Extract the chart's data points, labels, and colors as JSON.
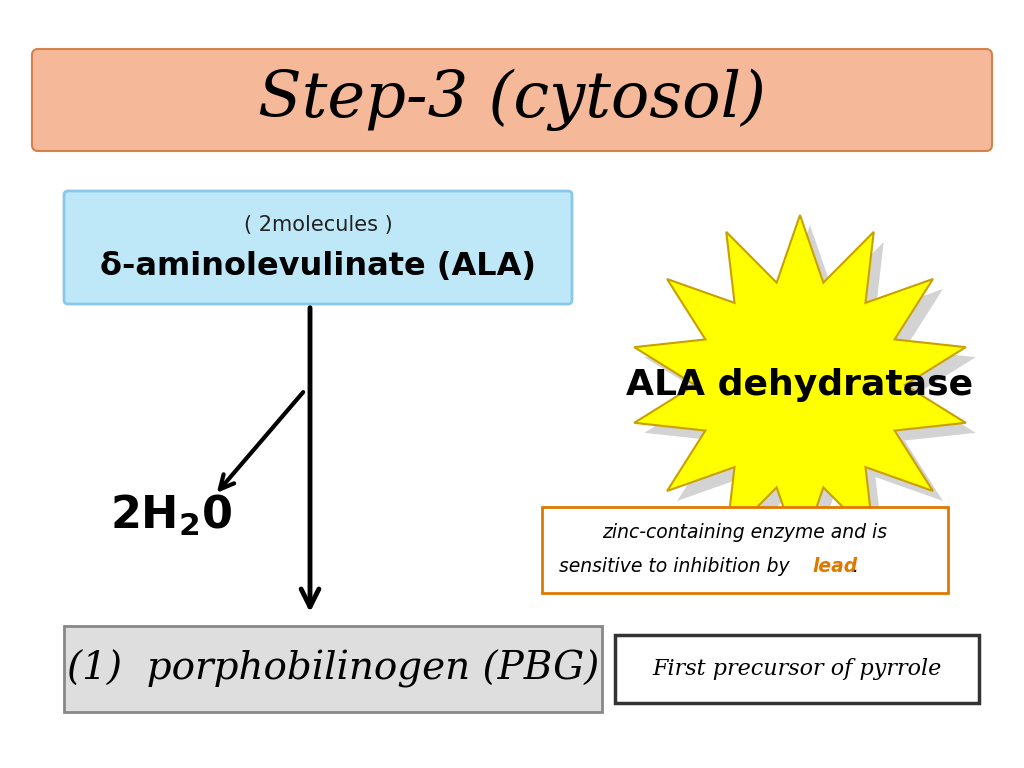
{
  "title": "Step-3 (cytosol)",
  "title_box_facecolor": "#F5B899",
  "title_box_edge": "#D4824A",
  "title_text_color": "#000000",
  "bg_color": "#FFFFFF",
  "ala_box_color": "#BEE8F8",
  "ala_box_edge": "#88C8E8",
  "ala_label_small": "( 2molecules )",
  "ala_label_main": "δ-aminolevulinate (ALA)",
  "product_label": "(1)  porphobilinogen (PBG)",
  "product_box_facecolor": "#DEDEDE",
  "product_box_edge": "#888888",
  "precursor_label": "First precursor of pyrrole",
  "precursor_box_edge": "#333333",
  "enzyme_label": "ALA dehydratase",
  "enzyme_text_color": "#000000",
  "star_color": "#FFFF00",
  "star_edge_color": "#C8A000",
  "zinc_lead_color": "#E07800",
  "zinc_box_edge": "#E07800"
}
